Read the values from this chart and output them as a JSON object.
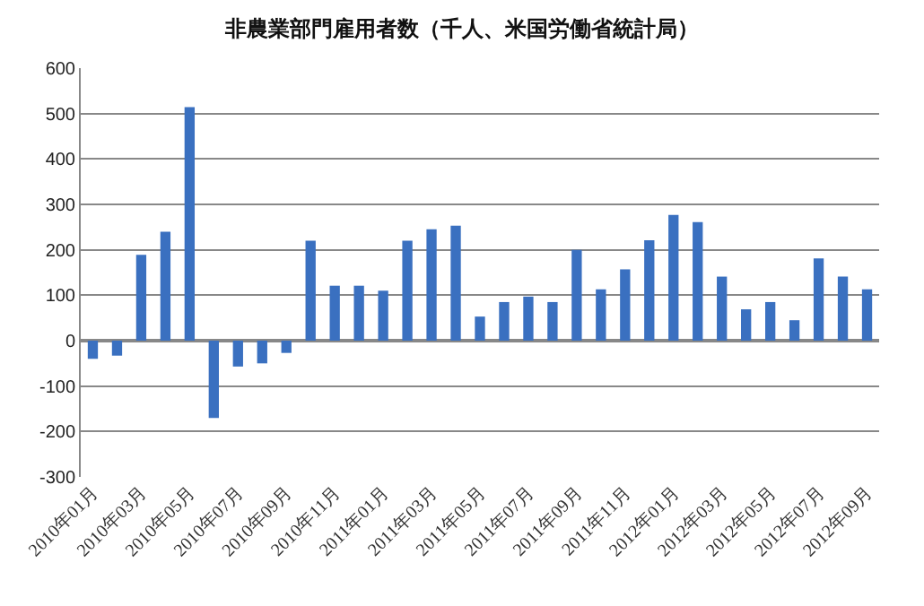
{
  "chart_data": {
    "type": "bar",
    "title": "非農業部門雇用者数（千人、米国労働省統計局）",
    "categories": [
      "2010年01月",
      null,
      "2010年03月",
      null,
      "2010年05月",
      null,
      "2010年07月",
      null,
      "2010年09月",
      null,
      "2010年11月",
      null,
      "2011年01月",
      null,
      "2011年03月",
      null,
      "2011年05月",
      null,
      "2011年07月",
      null,
      "2011年09月",
      null,
      "2011年11月",
      null,
      "2012年01月",
      null,
      "2012年03月",
      null,
      "2012年05月",
      null,
      "2012年07月",
      null,
      "2012年09月"
    ],
    "values": [
      -40,
      -33,
      189,
      240,
      514,
      -170,
      -57,
      -50,
      -27,
      220,
      121,
      121,
      110,
      220,
      245,
      253,
      53,
      85,
      97,
      85,
      200,
      113,
      157,
      221,
      277,
      261,
      141,
      69,
      85,
      45,
      181,
      141,
      113
    ],
    "color": "#3a70c0",
    "ylim": [
      -300,
      600
    ],
    "yticks": [
      -300,
      -200,
      -100,
      0,
      100,
      200,
      300,
      400,
      500,
      600
    ],
    "grid": "y",
    "legend": false
  }
}
